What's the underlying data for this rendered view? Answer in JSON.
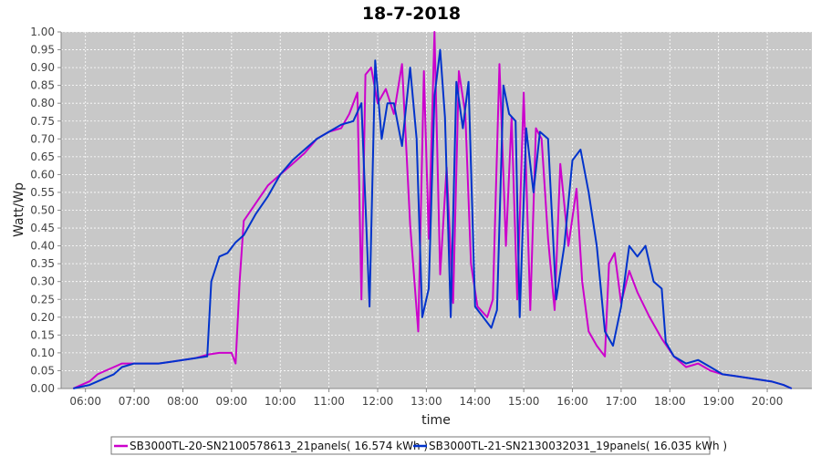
{
  "chart_data": {
    "type": "line",
    "title": "18-7-2018",
    "xlabel": "time",
    "ylabel": "Watt/Wp",
    "xlim": [
      "05:30",
      "20:55"
    ],
    "ylim": [
      0,
      1.0
    ],
    "xticks": [
      "06:00",
      "07:00",
      "08:00",
      "09:00",
      "10:00",
      "11:00",
      "12:00",
      "13:00",
      "14:00",
      "15:00",
      "16:00",
      "17:00",
      "18:00",
      "19:00",
      "20:00"
    ],
    "yticks": [
      "0.00",
      "0.05",
      "0.10",
      "0.15",
      "0.20",
      "0.25",
      "0.30",
      "0.35",
      "0.40",
      "0.45",
      "0.50",
      "0.55",
      "0.60",
      "0.65",
      "0.70",
      "0.75",
      "0.80",
      "0.85",
      "0.90",
      "0.95",
      "1.00"
    ],
    "grid": true,
    "legend_position": "bottom",
    "background": "#c8c8c8",
    "series": [
      {
        "name": "SB3000TL-20-SN2100578613_21panels( 16.574 kWh )",
        "color": "#cc00cc",
        "points": [
          [
            "05:45",
            0.0
          ],
          [
            "05:55",
            0.01
          ],
          [
            "06:05",
            0.02
          ],
          [
            "06:15",
            0.04
          ],
          [
            "06:25",
            0.05
          ],
          [
            "06:35",
            0.06
          ],
          [
            "06:45",
            0.07
          ],
          [
            "07:00",
            0.07
          ],
          [
            "07:15",
            0.07
          ],
          [
            "07:30",
            0.07
          ],
          [
            "07:45",
            0.075
          ],
          [
            "08:00",
            0.08
          ],
          [
            "08:15",
            0.085
          ],
          [
            "08:30",
            0.095
          ],
          [
            "08:45",
            0.1
          ],
          [
            "09:00",
            0.1
          ],
          [
            "09:05",
            0.07
          ],
          [
            "09:10",
            0.3
          ],
          [
            "09:15",
            0.47
          ],
          [
            "09:30",
            0.52
          ],
          [
            "09:45",
            0.57
          ],
          [
            "10:00",
            0.6
          ],
          [
            "10:15",
            0.63
          ],
          [
            "10:30",
            0.66
          ],
          [
            "10:45",
            0.7
          ],
          [
            "11:00",
            0.72
          ],
          [
            "11:15",
            0.73
          ],
          [
            "11:25",
            0.77
          ],
          [
            "11:35",
            0.83
          ],
          [
            "11:40",
            0.25
          ],
          [
            "11:45",
            0.88
          ],
          [
            "11:52",
            0.9
          ],
          [
            "12:00",
            0.8
          ],
          [
            "12:10",
            0.84
          ],
          [
            "12:20",
            0.77
          ],
          [
            "12:30",
            0.91
          ],
          [
            "12:40",
            0.46
          ],
          [
            "12:50",
            0.16
          ],
          [
            "12:57",
            0.89
          ],
          [
            "13:03",
            0.42
          ],
          [
            "13:10",
            1.0
          ],
          [
            "13:17",
            0.32
          ],
          [
            "13:25",
            0.62
          ],
          [
            "13:33",
            0.24
          ],
          [
            "13:40",
            0.89
          ],
          [
            "13:48",
            0.77
          ],
          [
            "13:55",
            0.35
          ],
          [
            "14:03",
            0.23
          ],
          [
            "14:15",
            0.2
          ],
          [
            "14:22",
            0.25
          ],
          [
            "14:30",
            0.91
          ],
          [
            "14:38",
            0.4
          ],
          [
            "14:45",
            0.76
          ],
          [
            "14:52",
            0.25
          ],
          [
            "15:00",
            0.83
          ],
          [
            "15:08",
            0.22
          ],
          [
            "15:15",
            0.73
          ],
          [
            "15:22",
            0.7
          ],
          [
            "15:30",
            0.42
          ],
          [
            "15:38",
            0.22
          ],
          [
            "15:45",
            0.63
          ],
          [
            "15:55",
            0.4
          ],
          [
            "16:05",
            0.56
          ],
          [
            "16:12",
            0.3
          ],
          [
            "16:20",
            0.16
          ],
          [
            "16:30",
            0.12
          ],
          [
            "16:40",
            0.09
          ],
          [
            "16:45",
            0.35
          ],
          [
            "16:52",
            0.38
          ],
          [
            "17:00",
            0.24
          ],
          [
            "17:10",
            0.33
          ],
          [
            "17:20",
            0.27
          ],
          [
            "17:35",
            0.2
          ],
          [
            "17:50",
            0.14
          ],
          [
            "18:05",
            0.09
          ],
          [
            "18:20",
            0.06
          ],
          [
            "18:35",
            0.07
          ],
          [
            "18:50",
            0.05
          ],
          [
            "19:05",
            0.04
          ],
          [
            "19:20",
            0.035
          ],
          [
            "19:35",
            0.03
          ],
          [
            "19:50",
            0.025
          ],
          [
            "20:05",
            0.02
          ],
          [
            "20:20",
            0.01
          ],
          [
            "20:30",
            0.0
          ]
        ]
      },
      {
        "name": "SB3000TL-21-SN2130032031_19panels( 16.035 kWh )",
        "color": "#0033cc",
        "points": [
          [
            "05:45",
            0.0
          ],
          [
            "05:55",
            0.005
          ],
          [
            "06:05",
            0.01
          ],
          [
            "06:15",
            0.02
          ],
          [
            "06:25",
            0.03
          ],
          [
            "06:35",
            0.04
          ],
          [
            "06:45",
            0.06
          ],
          [
            "07:00",
            0.07
          ],
          [
            "07:15",
            0.07
          ],
          [
            "07:30",
            0.07
          ],
          [
            "07:45",
            0.075
          ],
          [
            "08:00",
            0.08
          ],
          [
            "08:15",
            0.085
          ],
          [
            "08:30",
            0.09
          ],
          [
            "08:35",
            0.3
          ],
          [
            "08:45",
            0.37
          ],
          [
            "08:55",
            0.38
          ],
          [
            "09:05",
            0.41
          ],
          [
            "09:15",
            0.43
          ],
          [
            "09:30",
            0.49
          ],
          [
            "09:45",
            0.54
          ],
          [
            "10:00",
            0.6
          ],
          [
            "10:15",
            0.64
          ],
          [
            "10:30",
            0.67
          ],
          [
            "10:45",
            0.7
          ],
          [
            "11:00",
            0.72
          ],
          [
            "11:15",
            0.74
          ],
          [
            "11:30",
            0.75
          ],
          [
            "11:40",
            0.8
          ],
          [
            "11:50",
            0.23
          ],
          [
            "11:57",
            0.92
          ],
          [
            "12:05",
            0.7
          ],
          [
            "12:12",
            0.8
          ],
          [
            "12:20",
            0.8
          ],
          [
            "12:30",
            0.68
          ],
          [
            "12:40",
            0.9
          ],
          [
            "12:48",
            0.7
          ],
          [
            "12:55",
            0.2
          ],
          [
            "13:03",
            0.28
          ],
          [
            "13:10",
            0.82
          ],
          [
            "13:17",
            0.95
          ],
          [
            "13:23",
            0.76
          ],
          [
            "13:30",
            0.2
          ],
          [
            "13:37",
            0.86
          ],
          [
            "13:45",
            0.73
          ],
          [
            "13:52",
            0.86
          ],
          [
            "14:00",
            0.23
          ],
          [
            "14:10",
            0.2
          ],
          [
            "14:20",
            0.17
          ],
          [
            "14:27",
            0.22
          ],
          [
            "14:35",
            0.85
          ],
          [
            "14:42",
            0.77
          ],
          [
            "14:50",
            0.75
          ],
          [
            "14:55",
            0.2
          ],
          [
            "15:03",
            0.73
          ],
          [
            "15:12",
            0.55
          ],
          [
            "15:20",
            0.72
          ],
          [
            "15:30",
            0.7
          ],
          [
            "15:40",
            0.25
          ],
          [
            "15:50",
            0.4
          ],
          [
            "16:00",
            0.64
          ],
          [
            "16:10",
            0.67
          ],
          [
            "16:20",
            0.55
          ],
          [
            "16:30",
            0.4
          ],
          [
            "16:40",
            0.16
          ],
          [
            "16:50",
            0.12
          ],
          [
            "17:00",
            0.23
          ],
          [
            "17:10",
            0.4
          ],
          [
            "17:20",
            0.37
          ],
          [
            "17:30",
            0.4
          ],
          [
            "17:40",
            0.3
          ],
          [
            "17:50",
            0.28
          ],
          [
            "17:55",
            0.13
          ],
          [
            "18:05",
            0.09
          ],
          [
            "18:20",
            0.07
          ],
          [
            "18:35",
            0.08
          ],
          [
            "18:50",
            0.06
          ],
          [
            "19:05",
            0.04
          ],
          [
            "19:20",
            0.035
          ],
          [
            "19:35",
            0.03
          ],
          [
            "19:50",
            0.025
          ],
          [
            "20:05",
            0.02
          ],
          [
            "20:20",
            0.01
          ],
          [
            "20:30",
            0.0
          ]
        ]
      }
    ]
  }
}
